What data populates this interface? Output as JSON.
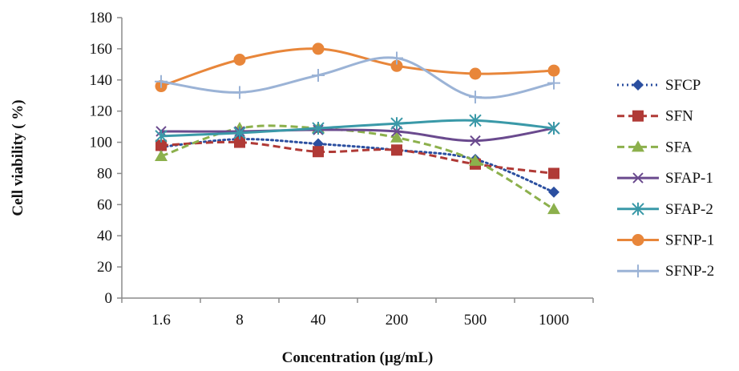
{
  "chart_data": {
    "type": "line",
    "title": "",
    "xlabel": "Concentration (µg/mL)",
    "ylabel": "Cell viability ( %)",
    "categories": [
      "1.6",
      "8",
      "40",
      "200",
      "500",
      "1000"
    ],
    "ylim": [
      0,
      180
    ],
    "yticks": [
      0,
      20,
      40,
      60,
      80,
      100,
      120,
      140,
      160,
      180
    ],
    "grid": false,
    "legend": "right",
    "series": [
      {
        "name": "SFCP",
        "values": [
          97,
          102,
          99,
          95,
          89,
          68
        ],
        "color": "#2b4fa0",
        "dash": "dotted",
        "marker": "diamond"
      },
      {
        "name": "SFN",
        "values": [
          98,
          100,
          94,
          95,
          86,
          80
        ],
        "color": "#b03a36",
        "dash": "dashed",
        "marker": "square"
      },
      {
        "name": "SFA",
        "values": [
          91,
          109,
          109,
          103,
          88,
          57
        ],
        "color": "#8cb04c",
        "dash": "dashed",
        "marker": "triangle"
      },
      {
        "name": "SFAP-1",
        "values": [
          107,
          107,
          108,
          107,
          101,
          109
        ],
        "color": "#6a4a8e",
        "dash": "solid",
        "marker": "x"
      },
      {
        "name": "SFAP-2",
        "values": [
          104,
          106,
          109,
          112,
          114,
          109
        ],
        "color": "#3a99a8",
        "dash": "solid",
        "marker": "star"
      },
      {
        "name": "SFNP-1",
        "values": [
          136,
          153,
          160,
          149,
          144,
          146
        ],
        "color": "#e8863a",
        "dash": "solid",
        "marker": "circle"
      },
      {
        "name": "SFNP-2",
        "values": [
          139,
          132,
          143,
          154,
          129,
          138
        ],
        "color": "#9bb3d6",
        "dash": "solid",
        "marker": "plus"
      }
    ]
  }
}
